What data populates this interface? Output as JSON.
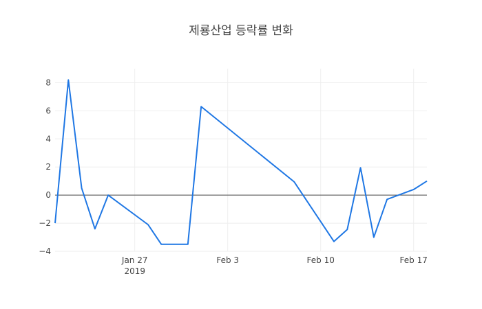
{
  "chart_data": {
    "type": "line",
    "title": "제룡산업 등락률 변화",
    "xlabel": "",
    "ylabel": "",
    "x_ticks": [
      {
        "date": "2019-01-27",
        "label": "Jan 27",
        "sublabel": "2019"
      },
      {
        "date": "2019-02-03",
        "label": "Feb 3",
        "sublabel": ""
      },
      {
        "date": "2019-02-10",
        "label": "Feb 10",
        "sublabel": ""
      },
      {
        "date": "2019-02-17",
        "label": "Feb 17",
        "sublabel": ""
      }
    ],
    "xlim": [
      "2019-01-21",
      "2019-02-18"
    ],
    "ylim": [
      -4,
      9
    ],
    "y_ticks": [
      -4,
      -2,
      0,
      2,
      4,
      6,
      8
    ],
    "grid": true,
    "zero_line": true,
    "series": [
      {
        "color": "#1f77e4",
        "x": [
          "2019-01-21",
          "2019-01-22",
          "2019-01-23",
          "2019-01-24",
          "2019-01-25",
          "2019-01-28",
          "2019-01-29",
          "2019-01-31",
          "2019-02-01",
          "2019-02-08",
          "2019-02-11",
          "2019-02-12",
          "2019-02-13",
          "2019-02-14",
          "2019-02-15",
          "2019-02-17",
          "2019-02-18"
        ],
        "y": [
          -2.0,
          8.2,
          0.5,
          -2.4,
          0.0,
          -2.1,
          -3.5,
          -3.5,
          6.3,
          0.95,
          -3.3,
          -2.45,
          1.95,
          -3.0,
          -0.3,
          0.4,
          1.0
        ]
      }
    ]
  }
}
